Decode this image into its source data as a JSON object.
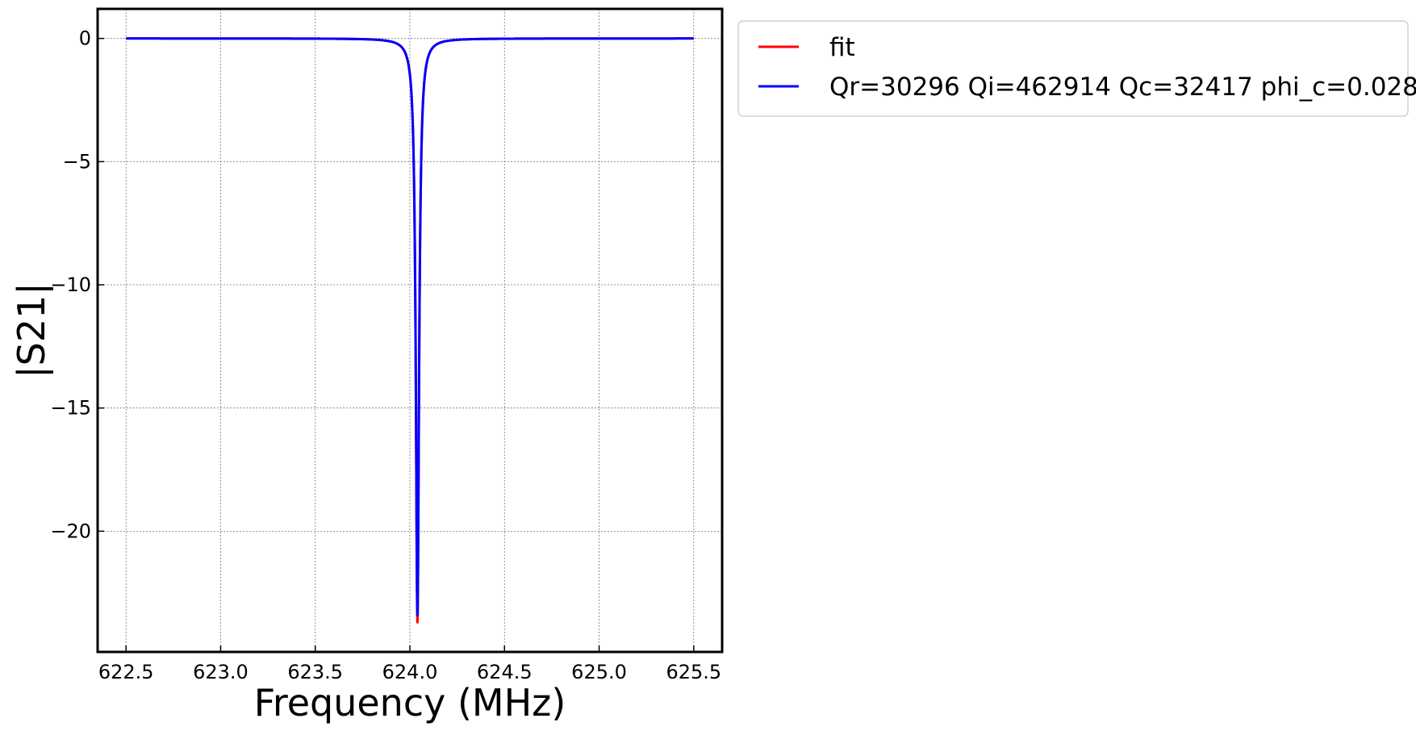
{
  "chart_data": {
    "type": "line",
    "title": "",
    "xlabel": "Frequency (MHz)",
    "ylabel": "|S21|",
    "xlim": [
      622.35,
      625.65
    ],
    "ylim": [
      -24.9,
      1.2
    ],
    "xticks": [
      622.5,
      623.0,
      623.5,
      624.0,
      624.5,
      625.0,
      625.5
    ],
    "xtick_labels": [
      "622.5",
      "623.0",
      "623.5",
      "624.0",
      "624.5",
      "625.0",
      "625.5"
    ],
    "yticks": [
      0,
      -5,
      -10,
      -15,
      -20
    ],
    "ytick_labels": [
      "0",
      "−5",
      "−10",
      "−15",
      "−20"
    ],
    "grid": true,
    "legend_position": "outside-top-right",
    "x_range": [
      622.5,
      625.5
    ],
    "series": [
      {
        "name": "fit",
        "color": "#ff0000",
        "model": "lorentzian-dip",
        "baseline": 0.0,
        "min_x": 624.04,
        "min_y": -23.7,
        "halfwidth": 0.0103
      },
      {
        "name": "Qr=30296 Qi=462914 Qc=32417 phi_c=0.028",
        "color": "#0000ff",
        "model": "lorentzian-dip",
        "baseline": 0.0,
        "min_x": 624.04,
        "min_y": -23.4,
        "halfwidth": 0.0103
      }
    ]
  }
}
